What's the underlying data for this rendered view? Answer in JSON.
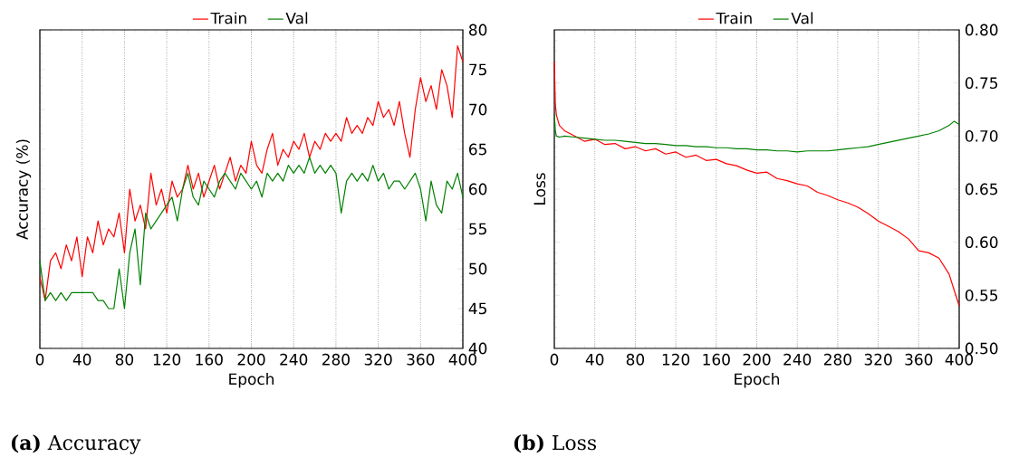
{
  "chart_data": [
    {
      "type": "line",
      "xlabel": "Epoch",
      "ylabel": "Accuracy (%)",
      "xlim": [
        0,
        400
      ],
      "xticks": [
        0,
        40,
        80,
        120,
        160,
        200,
        240,
        280,
        320,
        360,
        400
      ],
      "ylim": [
        40,
        80
      ],
      "yticks": [
        40,
        45,
        50,
        55,
        60,
        65,
        70,
        75,
        80
      ],
      "grid": "x",
      "legend": "top",
      "marker": "none",
      "annotations": [
        "**(a)** Accuracy"
      ],
      "series": [
        {
          "name": "Train",
          "color": "#ff0000",
          "x": [
            0,
            5,
            10,
            15,
            20,
            25,
            30,
            35,
            40,
            45,
            50,
            55,
            60,
            65,
            70,
            75,
            80,
            85,
            90,
            95,
            100,
            105,
            110,
            115,
            120,
            125,
            130,
            135,
            140,
            145,
            150,
            155,
            160,
            165,
            170,
            175,
            180,
            185,
            190,
            195,
            200,
            205,
            210,
            215,
            220,
            225,
            230,
            235,
            240,
            245,
            250,
            255,
            260,
            265,
            270,
            275,
            280,
            285,
            290,
            295,
            300,
            305,
            310,
            315,
            320,
            325,
            330,
            335,
            340,
            345,
            350,
            355,
            360,
            365,
            370,
            375,
            380,
            385,
            390,
            395,
            400
          ],
          "values": [
            49,
            46,
            51,
            52,
            50,
            53,
            51,
            54,
            49,
            54,
            52,
            56,
            53,
            55,
            54,
            57,
            52,
            60,
            56,
            58,
            55,
            62,
            58,
            60,
            57,
            61,
            59,
            60,
            63,
            60,
            62,
            59,
            61,
            63,
            60,
            62,
            64,
            61,
            63,
            62,
            66,
            63,
            62,
            65,
            67,
            63,
            65,
            64,
            66,
            65,
            67,
            64,
            66,
            65,
            67,
            66,
            67,
            66,
            69,
            67,
            68,
            67,
            69,
            68,
            71,
            69,
            70,
            68,
            71,
            67,
            64,
            70,
            74,
            71,
            73,
            70,
            75,
            73,
            69,
            78,
            76
          ]
        },
        {
          "name": "Val",
          "color": "#008000",
          "x": [
            0,
            5,
            10,
            15,
            20,
            25,
            30,
            35,
            40,
            45,
            50,
            55,
            60,
            65,
            70,
            75,
            80,
            85,
            90,
            95,
            100,
            105,
            110,
            115,
            120,
            125,
            130,
            135,
            140,
            145,
            150,
            155,
            160,
            165,
            170,
            175,
            180,
            185,
            190,
            195,
            200,
            205,
            210,
            215,
            220,
            225,
            230,
            235,
            240,
            245,
            250,
            255,
            260,
            265,
            270,
            275,
            280,
            285,
            290,
            295,
            300,
            305,
            310,
            315,
            320,
            325,
            330,
            335,
            340,
            345,
            350,
            355,
            360,
            365,
            370,
            375,
            380,
            385,
            390,
            395,
            400
          ],
          "values": [
            51,
            46,
            47,
            46,
            47,
            46,
            47,
            47,
            47,
            47,
            47,
            46,
            46,
            45,
            45,
            50,
            45,
            52,
            55,
            48,
            57,
            55,
            56,
            57,
            58,
            59,
            56,
            60,
            62,
            59,
            58,
            61,
            60,
            59,
            61,
            62,
            61,
            60,
            62,
            61,
            60,
            61,
            59,
            62,
            61,
            62,
            61,
            63,
            62,
            63,
            62,
            64,
            62,
            63,
            62,
            63,
            62,
            57,
            61,
            62,
            61,
            62,
            61,
            63,
            61,
            62,
            60,
            61,
            61,
            60,
            61,
            62,
            60,
            56,
            61,
            58,
            57,
            61,
            60,
            62,
            59
          ]
        }
      ]
    },
    {
      "type": "line",
      "xlabel": "Epoch",
      "ylabel": "Loss",
      "xlim": [
        0,
        400
      ],
      "xticks": [
        0,
        40,
        80,
        120,
        160,
        200,
        240,
        280,
        320,
        360,
        400
      ],
      "ylim": [
        0.5,
        0.8
      ],
      "yticks": [
        {
          "value": 0.5,
          "label": "0.50"
        },
        {
          "value": 0.55,
          "label": "0.55"
        },
        {
          "value": 0.6,
          "label": "0.60"
        },
        {
          "value": 0.65,
          "label": "0.65"
        },
        {
          "value": 0.7,
          "label": "0.70"
        },
        {
          "value": 0.75,
          "label": "0.75"
        },
        {
          "value": 0.8,
          "label": "0.80"
        }
      ],
      "grid": "x",
      "legend": "top",
      "marker": "none",
      "annotations": [
        "**(b)** Loss"
      ],
      "series": [
        {
          "name": "Train",
          "color": "#ff0000",
          "x": [
            0,
            1,
            2,
            5,
            10,
            20,
            30,
            40,
            50,
            60,
            70,
            80,
            90,
            100,
            110,
            120,
            130,
            140,
            150,
            160,
            170,
            180,
            190,
            200,
            210,
            220,
            230,
            240,
            250,
            260,
            270,
            280,
            290,
            300,
            310,
            320,
            330,
            340,
            350,
            360,
            370,
            380,
            390,
            395,
            400
          ],
          "values": [
            0.77,
            0.73,
            0.72,
            0.71,
            0.705,
            0.7,
            0.695,
            0.697,
            0.692,
            0.693,
            0.688,
            0.69,
            0.686,
            0.688,
            0.683,
            0.685,
            0.68,
            0.682,
            0.677,
            0.678,
            0.674,
            0.672,
            0.668,
            0.665,
            0.666,
            0.66,
            0.658,
            0.655,
            0.653,
            0.647,
            0.644,
            0.64,
            0.637,
            0.633,
            0.627,
            0.62,
            0.615,
            0.61,
            0.603,
            0.592,
            0.59,
            0.585,
            0.57,
            0.555,
            0.54
          ]
        },
        {
          "name": "Val",
          "color": "#008000",
          "x": [
            0,
            1,
            2,
            5,
            10,
            20,
            30,
            40,
            50,
            60,
            70,
            80,
            90,
            100,
            110,
            120,
            130,
            140,
            150,
            160,
            170,
            180,
            190,
            200,
            210,
            220,
            230,
            240,
            250,
            260,
            270,
            280,
            290,
            300,
            310,
            320,
            330,
            340,
            350,
            360,
            370,
            380,
            390,
            395,
            400
          ],
          "values": [
            0.72,
            0.705,
            0.7,
            0.699,
            0.7,
            0.699,
            0.698,
            0.697,
            0.696,
            0.696,
            0.695,
            0.694,
            0.693,
            0.693,
            0.692,
            0.691,
            0.691,
            0.69,
            0.69,
            0.689,
            0.689,
            0.688,
            0.688,
            0.687,
            0.687,
            0.686,
            0.686,
            0.685,
            0.686,
            0.686,
            0.686,
            0.687,
            0.688,
            0.689,
            0.69,
            0.692,
            0.694,
            0.696,
            0.698,
            0.7,
            0.702,
            0.705,
            0.71,
            0.714,
            0.711
          ]
        }
      ]
    }
  ]
}
